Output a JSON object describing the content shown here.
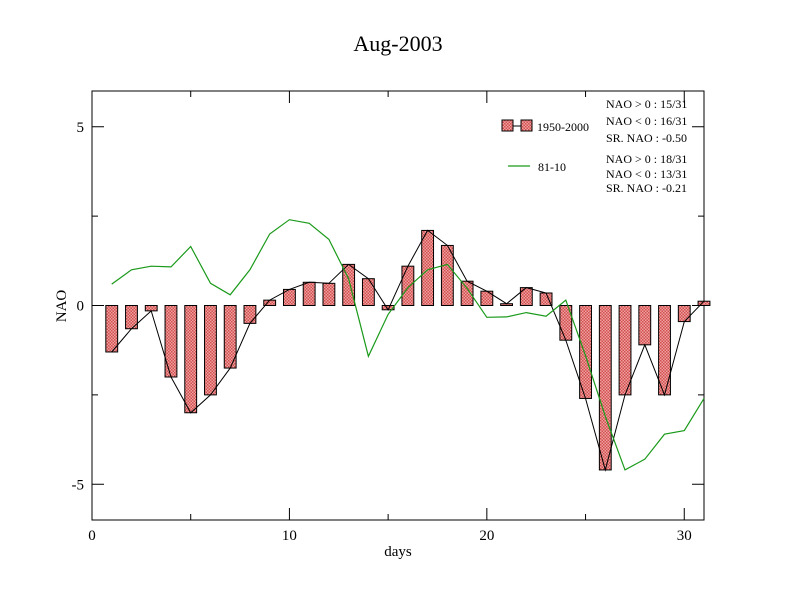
{
  "chart_data": {
    "type": "bar",
    "title": "Aug-2003",
    "xlabel": "days",
    "ylabel": "NAO",
    "xlim": [
      0,
      31
    ],
    "ylim": [
      -6,
      6
    ],
    "x_ticks": [
      0,
      10,
      20,
      30
    ],
    "x_tick_labels": [
      "0",
      "10",
      "20",
      "30"
    ],
    "y_ticks": [
      -5,
      0,
      5
    ],
    "y_tick_labels": [
      "-5",
      "0",
      "5"
    ],
    "grid": false,
    "legend_position": "top-right",
    "x": [
      1,
      2,
      3,
      4,
      5,
      6,
      7,
      8,
      9,
      10,
      11,
      12,
      13,
      14,
      15,
      16,
      17,
      18,
      19,
      20,
      21,
      22,
      23,
      24,
      25,
      26,
      27,
      28,
      29,
      30,
      31
    ],
    "series": [
      {
        "name": "1950-2000",
        "type": "bar",
        "bar_color": "#e87070",
        "values": [
          -1.3,
          -0.65,
          -0.15,
          -2.0,
          -3.0,
          -2.5,
          -1.75,
          -0.5,
          0.15,
          0.45,
          0.65,
          0.62,
          1.15,
          0.75,
          -0.12,
          1.1,
          2.1,
          1.68,
          0.68,
          0.4,
          0.05,
          0.5,
          0.35,
          -0.97,
          -2.6,
          -4.6,
          -2.5,
          -1.1,
          -2.5,
          -0.45,
          0.12
        ]
      },
      {
        "name": "81-10",
        "type": "line",
        "color": "#1a9a1a",
        "values": [
          0.6,
          1.0,
          1.1,
          1.08,
          1.65,
          0.62,
          0.3,
          1.0,
          2.0,
          2.4,
          2.3,
          1.85,
          0.75,
          -1.42,
          -0.25,
          0.5,
          1.0,
          1.15,
          0.48,
          -0.33,
          -0.32,
          -0.2,
          -0.3,
          0.15,
          -1.4,
          -3.1,
          -4.6,
          -4.3,
          -3.6,
          -3.5,
          -2.6
        ]
      }
    ],
    "stats": [
      {
        "series": "1950-2000",
        "lines": [
          "NAO > 0 : 15/31",
          "NAO < 0 : 16/31",
          "SR. NAO : -0.50"
        ]
      },
      {
        "series": "81-10",
        "lines": [
          "NAO > 0 : 18/31",
          "NAO < 0 : 13/31",
          "SR. NAO : -0.21"
        ]
      }
    ]
  }
}
